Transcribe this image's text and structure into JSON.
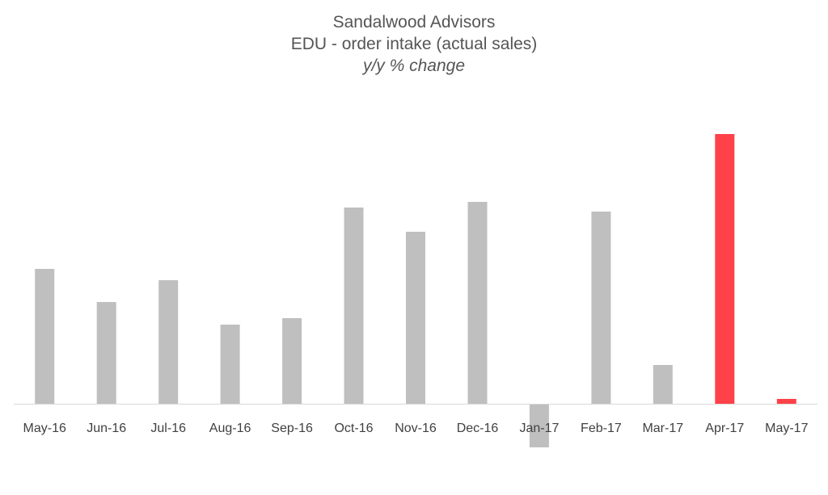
{
  "chart_data": {
    "type": "bar",
    "title": "Sandalwood Advisors",
    "subtitle": "EDU - order intake (actual sales)",
    "subtitle2": "y/y % change",
    "categories": [
      "May-16",
      "Jun-16",
      "Jul-16",
      "Aug-16",
      "Sep-16",
      "Oct-16",
      "Nov-16",
      "Dec-16",
      "Jan-17",
      "Feb-17",
      "Mar-17",
      "Apr-17",
      "May-17"
    ],
    "values": [
      16.7,
      12.6,
      15.3,
      9.8,
      10.6,
      24.3,
      21.3,
      25.0,
      -5.4,
      23.8,
      4.8,
      33.4,
      0.6
    ],
    "highlight": [
      "Apr-17",
      "May-17"
    ],
    "colors": {
      "default": "#bfbfbf",
      "highlight": "#ff4149",
      "axis": "#d9d9d9"
    },
    "ylim": [
      -8,
      38
    ],
    "grid": false,
    "legend": "none",
    "xlabel": "",
    "ylabel": ""
  }
}
